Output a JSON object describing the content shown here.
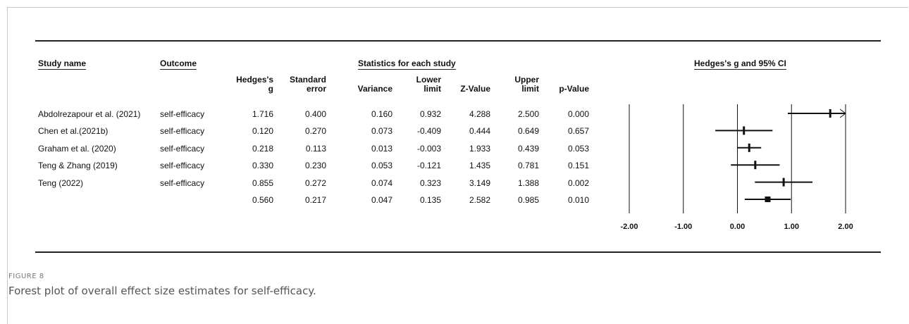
{
  "chart_data": {
    "type": "forest",
    "section_headers": {
      "study_name": "Study name",
      "outcome": "Outcome",
      "statistics": "Statistics for each study",
      "plot": "Hedges's g and 95% CI"
    },
    "columns": [
      {
        "key": "g",
        "label": "Hedges's\ng"
      },
      {
        "key": "se",
        "label": "Standard\nerror"
      },
      {
        "key": "var",
        "label": "Variance"
      },
      {
        "key": "lower",
        "label": "Lower\nlimit"
      },
      {
        "key": "z",
        "label": "Z-Value"
      },
      {
        "key": "upper",
        "label": "Upper\nlimit"
      },
      {
        "key": "p",
        "label": "p-Value"
      }
    ],
    "rows": [
      {
        "study": "Abdolrezapour et al. (2021)",
        "outcome": "self-efficacy",
        "g": "1.716",
        "se": "0.400",
        "var": "0.160",
        "lower": "0.932",
        "z": "4.288",
        "upper": "2.500",
        "p": "0.000",
        "arrow_right": true
      },
      {
        "study": "Chen et al.(2021b)",
        "outcome": "self-efficacy",
        "g": "0.120",
        "se": "0.270",
        "var": "0.073",
        "lower": "-0.409",
        "z": "0.444",
        "upper": "0.649",
        "p": "0.657"
      },
      {
        "study": "Graham et al. (2020)",
        "outcome": "self-efficacy",
        "g": "0.218",
        "se": "0.113",
        "var": "0.013",
        "lower": "-0.003",
        "z": "1.933",
        "upper": "0.439",
        "p": "0.053"
      },
      {
        "study": "Teng & Zhang (2019)",
        "outcome": "self-efficacy",
        "g": "0.330",
        "se": "0.230",
        "var": "0.053",
        "lower": "-0.121",
        "z": "1.435",
        "upper": "0.781",
        "p": "0.151"
      },
      {
        "study": "Teng (2022)",
        "outcome": "self-efficacy",
        "g": "0.855",
        "se": "0.272",
        "var": "0.074",
        "lower": "0.323",
        "z": "3.149",
        "upper": "1.388",
        "p": "0.002"
      }
    ],
    "summary": {
      "g": "0.560",
      "se": "0.217",
      "var": "0.047",
      "lower": "0.135",
      "z": "2.582",
      "upper": "0.985",
      "p": "0.010"
    },
    "x_ticks": [
      -2,
      -1,
      0,
      1,
      2
    ],
    "x_tick_labels": [
      "-2.00",
      "-1.00",
      "0.00",
      "1.00",
      "2.00"
    ],
    "xlim": [
      -2,
      2
    ]
  },
  "caption": {
    "label": "FIGURE 8",
    "text": "Forest plot of overall effect size estimates for self-efficacy."
  }
}
